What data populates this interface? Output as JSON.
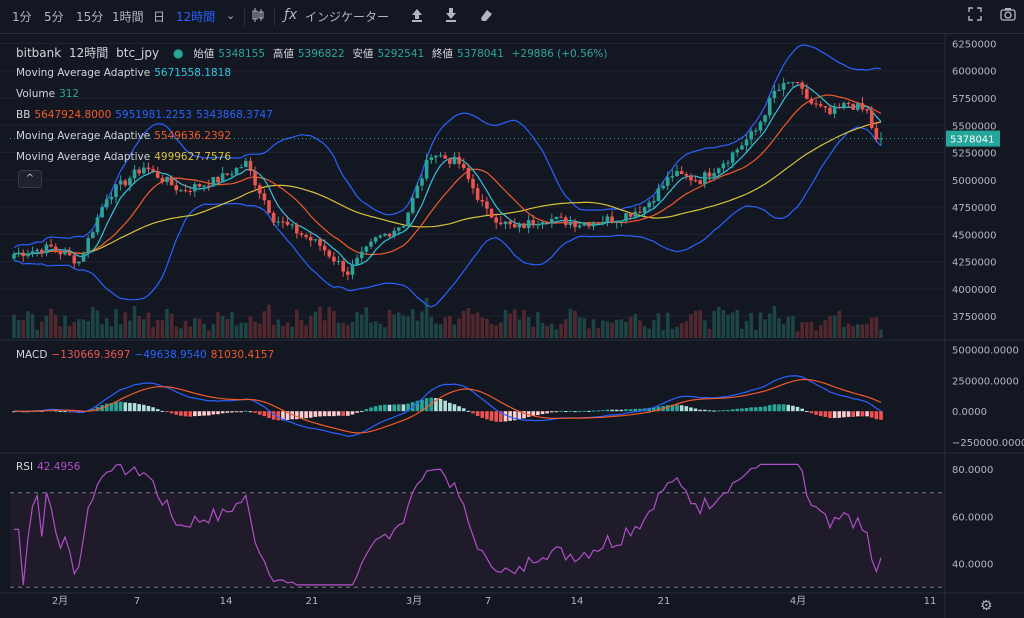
{
  "toolbar": {
    "intervals": [
      "1分",
      "5分",
      "15分",
      "1時間",
      "日",
      "12時間"
    ],
    "indicators_label": "インジケーター",
    "icons": [
      "chevron-down-icon",
      "candles-icon",
      "fx-icon",
      "upload-icon",
      "download-icon",
      "eraser-icon",
      "fullscreen-icon",
      "camera-icon"
    ]
  },
  "legend": {
    "exchange": "bitbank",
    "interval": "12時間",
    "symbol": "btc_jpy",
    "open_label": "始値",
    "open": "5348155",
    "high_label": "高値",
    "high": "5396822",
    "low_label": "安値",
    "low": "5292541",
    "close_label": "終値",
    "close": "5378041",
    "change": "+29886 (+0.56%)",
    "ma1_label": "Moving Average Adaptive",
    "ma1": "5671558.1818",
    "vol_label": "Volume",
    "vol": "312",
    "bb_label": "BB",
    "bb_mid": "5647924.8000",
    "bb_up": "5951981.2253",
    "bb_low": "5343868.3747",
    "ma2_label": "Moving Average Adaptive",
    "ma2": "5549636.2392",
    "ma3_label": "Moving Average Adaptive",
    "ma3": "4999627.7576",
    "toggle": "^"
  },
  "macd_legend": {
    "label": "MACD",
    "v1": "−130669.3697",
    "v2": "−49638.9540",
    "v3": "81030.4157"
  },
  "rsi_legend": {
    "label": "RSI",
    "value": "42.4956"
  },
  "price_axis": [
    "6250000",
    "6000000",
    "5750000",
    "5500000",
    "5250000",
    "5000000",
    "4750000",
    "4500000",
    "4250000",
    "4000000",
    "3750000"
  ],
  "price_ticks": [
    6250000,
    6000000,
    5750000,
    5500000,
    5250000,
    5000000,
    4750000,
    4500000,
    4250000,
    4000000,
    3750000
  ],
  "last_price": "5378041",
  "last_price_value": 5378041,
  "macd_axis": [
    "500000.0000",
    "250000.0000",
    "0.0000",
    "−250000.0000"
  ],
  "rsi_axis": [
    "80.0000",
    "60.0000",
    "40.0000"
  ],
  "time_axis": [
    "2月",
    "7",
    "14",
    "21",
    "3月",
    "7",
    "14",
    "21",
    "4月",
    "11"
  ],
  "colors": {
    "up": "#26a69a",
    "down": "#ef5350",
    "bb": "#2962ff",
    "ma1": "#26c6da",
    "ma2": "#f05a28",
    "ma3": "#d4c23a",
    "rsi": "#b04fc4",
    "bg": "#131722",
    "grid": "#1f2330"
  },
  "chart_data": {
    "type": "candlestick",
    "price_range": [
      3550000,
      6300000
    ],
    "start_price": 4320000,
    "anchors": [
      [
        0,
        4320000
      ],
      [
        8,
        4380000
      ],
      [
        14,
        4250000
      ],
      [
        20,
        4850000
      ],
      [
        28,
        5120000
      ],
      [
        36,
        4900000
      ],
      [
        44,
        5000000
      ],
      [
        50,
        5150000
      ],
      [
        56,
        4650000
      ],
      [
        66,
        4400000
      ],
      [
        72,
        4150000
      ],
      [
        78,
        4450000
      ],
      [
        84,
        4600000
      ],
      [
        90,
        5250000
      ],
      [
        96,
        5150000
      ],
      [
        102,
        4700000
      ],
      [
        108,
        4550000
      ],
      [
        114,
        4650000
      ],
      [
        122,
        4600000
      ],
      [
        130,
        4650000
      ],
      [
        136,
        4750000
      ],
      [
        142,
        5050000
      ],
      [
        148,
        5000000
      ],
      [
        154,
        5200000
      ],
      [
        160,
        5450000
      ],
      [
        164,
        5800000
      ],
      [
        168,
        5900000
      ],
      [
        172,
        5700000
      ],
      [
        176,
        5600000
      ],
      [
        180,
        5700000
      ],
      [
        184,
        5620000
      ],
      [
        186,
        5350000
      ],
      [
        187,
        5378041
      ]
    ],
    "macd_range": [
      -330000,
      560000
    ],
    "rsi_range": [
      28,
      86
    ],
    "rsi_levels": [
      70,
      30
    ]
  }
}
